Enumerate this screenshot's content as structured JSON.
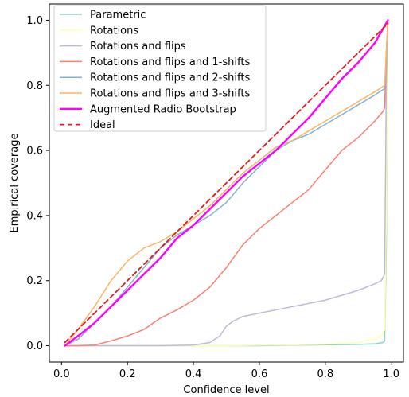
{
  "chart_data": {
    "type": "line",
    "xlabel": "Confidence level",
    "ylabel": "Empirical coverage",
    "xlim": [
      -0.037,
      1.037
    ],
    "ylim": [
      -0.05,
      1.05
    ],
    "xticks": [
      0.0,
      0.2,
      0.4,
      0.6,
      0.8,
      1.0
    ],
    "xtick_labels": [
      "0.0",
      "0.2",
      "0.4",
      "0.6",
      "0.8",
      "1.0"
    ],
    "yticks": [
      0.0,
      0.2,
      0.4,
      0.6,
      0.8,
      1.0
    ],
    "ytick_labels": [
      "0.0",
      "0.2",
      "0.4",
      "0.6",
      "0.8",
      "1.0"
    ],
    "grid": false,
    "legend_position": "upper left",
    "series": [
      {
        "name": "Parametric",
        "color": "#8dd3c7",
        "width": 1.5,
        "dash": "",
        "x": [
          0.01,
          0.1,
          0.2,
          0.3,
          0.4,
          0.5,
          0.6,
          0.7,
          0.8,
          0.9,
          0.95,
          0.975,
          0.98,
          0.985,
          0.99
        ],
        "y": [
          0.0,
          0.0,
          0.0,
          0.0,
          0.0,
          0.0,
          0.0,
          0.002,
          0.003,
          0.004,
          0.006,
          0.01,
          0.014,
          0.3,
          1.0
        ]
      },
      {
        "name": "Rotations",
        "color": "#ffffb3",
        "width": 1.5,
        "dash": "",
        "x": [
          0.01,
          0.1,
          0.2,
          0.3,
          0.4,
          0.5,
          0.6,
          0.7,
          0.8,
          0.9,
          0.95,
          0.97,
          0.98,
          0.985,
          0.99
        ],
        "y": [
          0.0,
          0.0,
          0.0,
          0.0,
          0.0,
          0.0,
          0.002,
          0.003,
          0.005,
          0.01,
          0.02,
          0.03,
          0.05,
          0.4,
          1.0
        ]
      },
      {
        "name": "Rotations and flips",
        "color": "#bebada",
        "width": 1.5,
        "dash": "",
        "x": [
          0.01,
          0.1,
          0.2,
          0.3,
          0.4,
          0.45,
          0.48,
          0.5,
          0.52,
          0.55,
          0.6,
          0.7,
          0.8,
          0.9,
          0.95,
          0.97,
          0.98,
          0.985,
          0.99
        ],
        "y": [
          0.0,
          0.0,
          0.0,
          0.0,
          0.002,
          0.01,
          0.03,
          0.06,
          0.075,
          0.09,
          0.1,
          0.12,
          0.14,
          0.17,
          0.19,
          0.2,
          0.22,
          0.8,
          1.0
        ]
      },
      {
        "name": "Rotations and flips and 1-shifts",
        "color": "#fb8072",
        "width": 1.5,
        "dash": "",
        "x": [
          0.01,
          0.05,
          0.1,
          0.15,
          0.2,
          0.25,
          0.3,
          0.35,
          0.4,
          0.45,
          0.5,
          0.55,
          0.6,
          0.65,
          0.7,
          0.75,
          0.8,
          0.85,
          0.9,
          0.95,
          0.975,
          0.98,
          0.985,
          0.99
        ],
        "y": [
          0.0,
          0.0,
          0.002,
          0.015,
          0.03,
          0.05,
          0.085,
          0.11,
          0.14,
          0.18,
          0.24,
          0.31,
          0.36,
          0.4,
          0.44,
          0.48,
          0.54,
          0.6,
          0.64,
          0.69,
          0.72,
          0.73,
          0.9,
          1.0
        ]
      },
      {
        "name": "Rotations and flips and 2-shifts",
        "color": "#80b1d3",
        "width": 1.5,
        "dash": "",
        "x": [
          0.01,
          0.05,
          0.1,
          0.15,
          0.2,
          0.25,
          0.3,
          0.35,
          0.4,
          0.45,
          0.5,
          0.55,
          0.6,
          0.65,
          0.7,
          0.75,
          0.8,
          0.85,
          0.9,
          0.95,
          0.98,
          0.985,
          0.99
        ],
        "y": [
          0.0,
          0.02,
          0.07,
          0.12,
          0.18,
          0.24,
          0.3,
          0.34,
          0.37,
          0.4,
          0.44,
          0.5,
          0.55,
          0.6,
          0.63,
          0.65,
          0.68,
          0.71,
          0.74,
          0.77,
          0.79,
          0.9,
          1.0
        ]
      },
      {
        "name": "Rotations and flips and 3-shifts",
        "color": "#fdb462",
        "width": 1.5,
        "dash": "",
        "x": [
          0.01,
          0.05,
          0.1,
          0.15,
          0.2,
          0.25,
          0.3,
          0.35,
          0.4,
          0.45,
          0.5,
          0.55,
          0.6,
          0.65,
          0.7,
          0.75,
          0.8,
          0.85,
          0.9,
          0.95,
          0.98,
          0.985,
          0.99
        ],
        "y": [
          0.0,
          0.05,
          0.12,
          0.2,
          0.26,
          0.3,
          0.32,
          0.35,
          0.39,
          0.43,
          0.48,
          0.53,
          0.57,
          0.61,
          0.63,
          0.66,
          0.69,
          0.72,
          0.75,
          0.78,
          0.8,
          0.9,
          1.0
        ]
      },
      {
        "name": "Augmented Radio Bootstrap",
        "color": "#ff00ff",
        "width": 2.4,
        "dash": "",
        "x": [
          0.01,
          0.05,
          0.1,
          0.15,
          0.2,
          0.25,
          0.3,
          0.35,
          0.4,
          0.45,
          0.5,
          0.55,
          0.6,
          0.65,
          0.7,
          0.75,
          0.8,
          0.85,
          0.9,
          0.95,
          0.99
        ],
        "y": [
          0.0,
          0.03,
          0.07,
          0.12,
          0.17,
          0.22,
          0.27,
          0.33,
          0.37,
          0.42,
          0.47,
          0.52,
          0.56,
          0.6,
          0.65,
          0.7,
          0.76,
          0.82,
          0.87,
          0.93,
          1.0
        ]
      },
      {
        "name": "Ideal",
        "color": "#e31a1c",
        "width": 1.8,
        "dash": "6,4",
        "x": [
          0.01,
          0.99
        ],
        "y": [
          0.01,
          0.99
        ]
      }
    ]
  }
}
